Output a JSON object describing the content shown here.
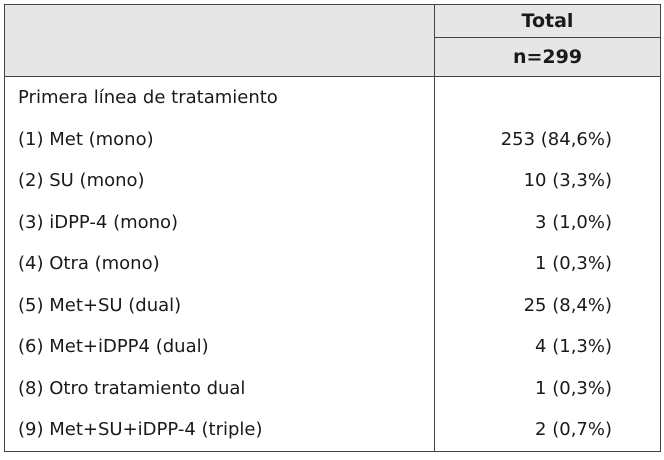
{
  "header": {
    "column_title": "Total",
    "n_label": "n=299"
  },
  "section_title": "Primera línea de tratamiento",
  "rows": [
    {
      "label": "(1) Met (mono)",
      "value": "253 (84,6%)"
    },
    {
      "label": "(2) SU (mono)",
      "value": "10 (3,3%)"
    },
    {
      "label": "(3) iDPP-4 (mono)",
      "value": "3 (1,0%)"
    },
    {
      "label": "(4) Otra (mono)",
      "value": "1 (0,3%)"
    },
    {
      "label": "(5) Met+SU (dual)",
      "value": "25 (8,4%)"
    },
    {
      "label": "(6) Met+iDPP4 (dual)",
      "value": "4 (1,3%)"
    },
    {
      "label": "(8) Otro tratamiento dual",
      "value": "1 (0,3%)"
    },
    {
      "label": "(9) Met+SU+iDPP-4 (triple)",
      "value": "2 (0,7%)"
    }
  ]
}
